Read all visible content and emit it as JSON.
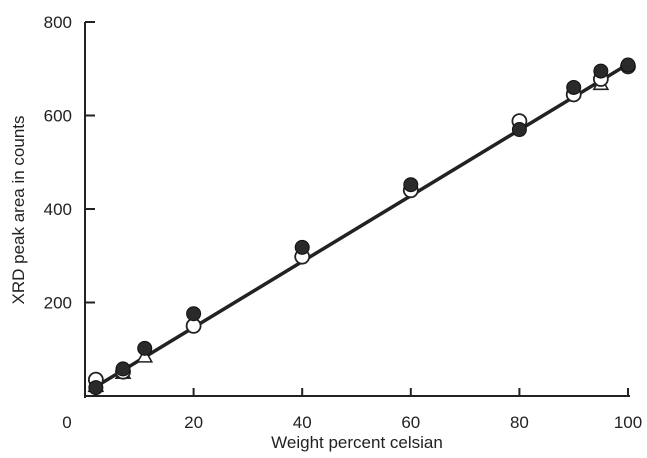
{
  "chart_data": {
    "type": "scatter",
    "xlabel": "Weight percent celsian",
    "ylabel": "XRD peak area in counts",
    "xlim": [
      0,
      100
    ],
    "ylim": [
      0,
      800
    ],
    "x_ticks": [
      "0",
      "20",
      "40",
      "60",
      "80",
      "100"
    ],
    "y_ticks": [
      "200",
      "400",
      "600",
      "800"
    ],
    "grid": false,
    "legend": "none",
    "series": [
      {
        "marker": "filled-circle",
        "x": [
          2,
          7,
          11,
          20,
          40,
          60,
          80,
          90,
          95,
          100
        ],
        "y": [
          18,
          58,
          102,
          176,
          318,
          452,
          570,
          660,
          695,
          708
        ]
      },
      {
        "marker": "open-circle",
        "x": [
          2,
          7,
          20,
          40,
          60,
          80,
          90,
          95,
          100
        ],
        "y": [
          35,
          52,
          150,
          298,
          440,
          588,
          645,
          678,
          705
        ]
      },
      {
        "marker": "open-triangle",
        "x": [
          2,
          7,
          11,
          95
        ],
        "y": [
          22,
          50,
          85,
          668
        ]
      }
    ],
    "fit_line": {
      "x": [
        2,
        100
      ],
      "y": [
        20,
        710
      ]
    },
    "colors": {
      "line": "#222222",
      "filled_marker": "#2a2a2a",
      "open_marker": "#ffffff"
    }
  }
}
